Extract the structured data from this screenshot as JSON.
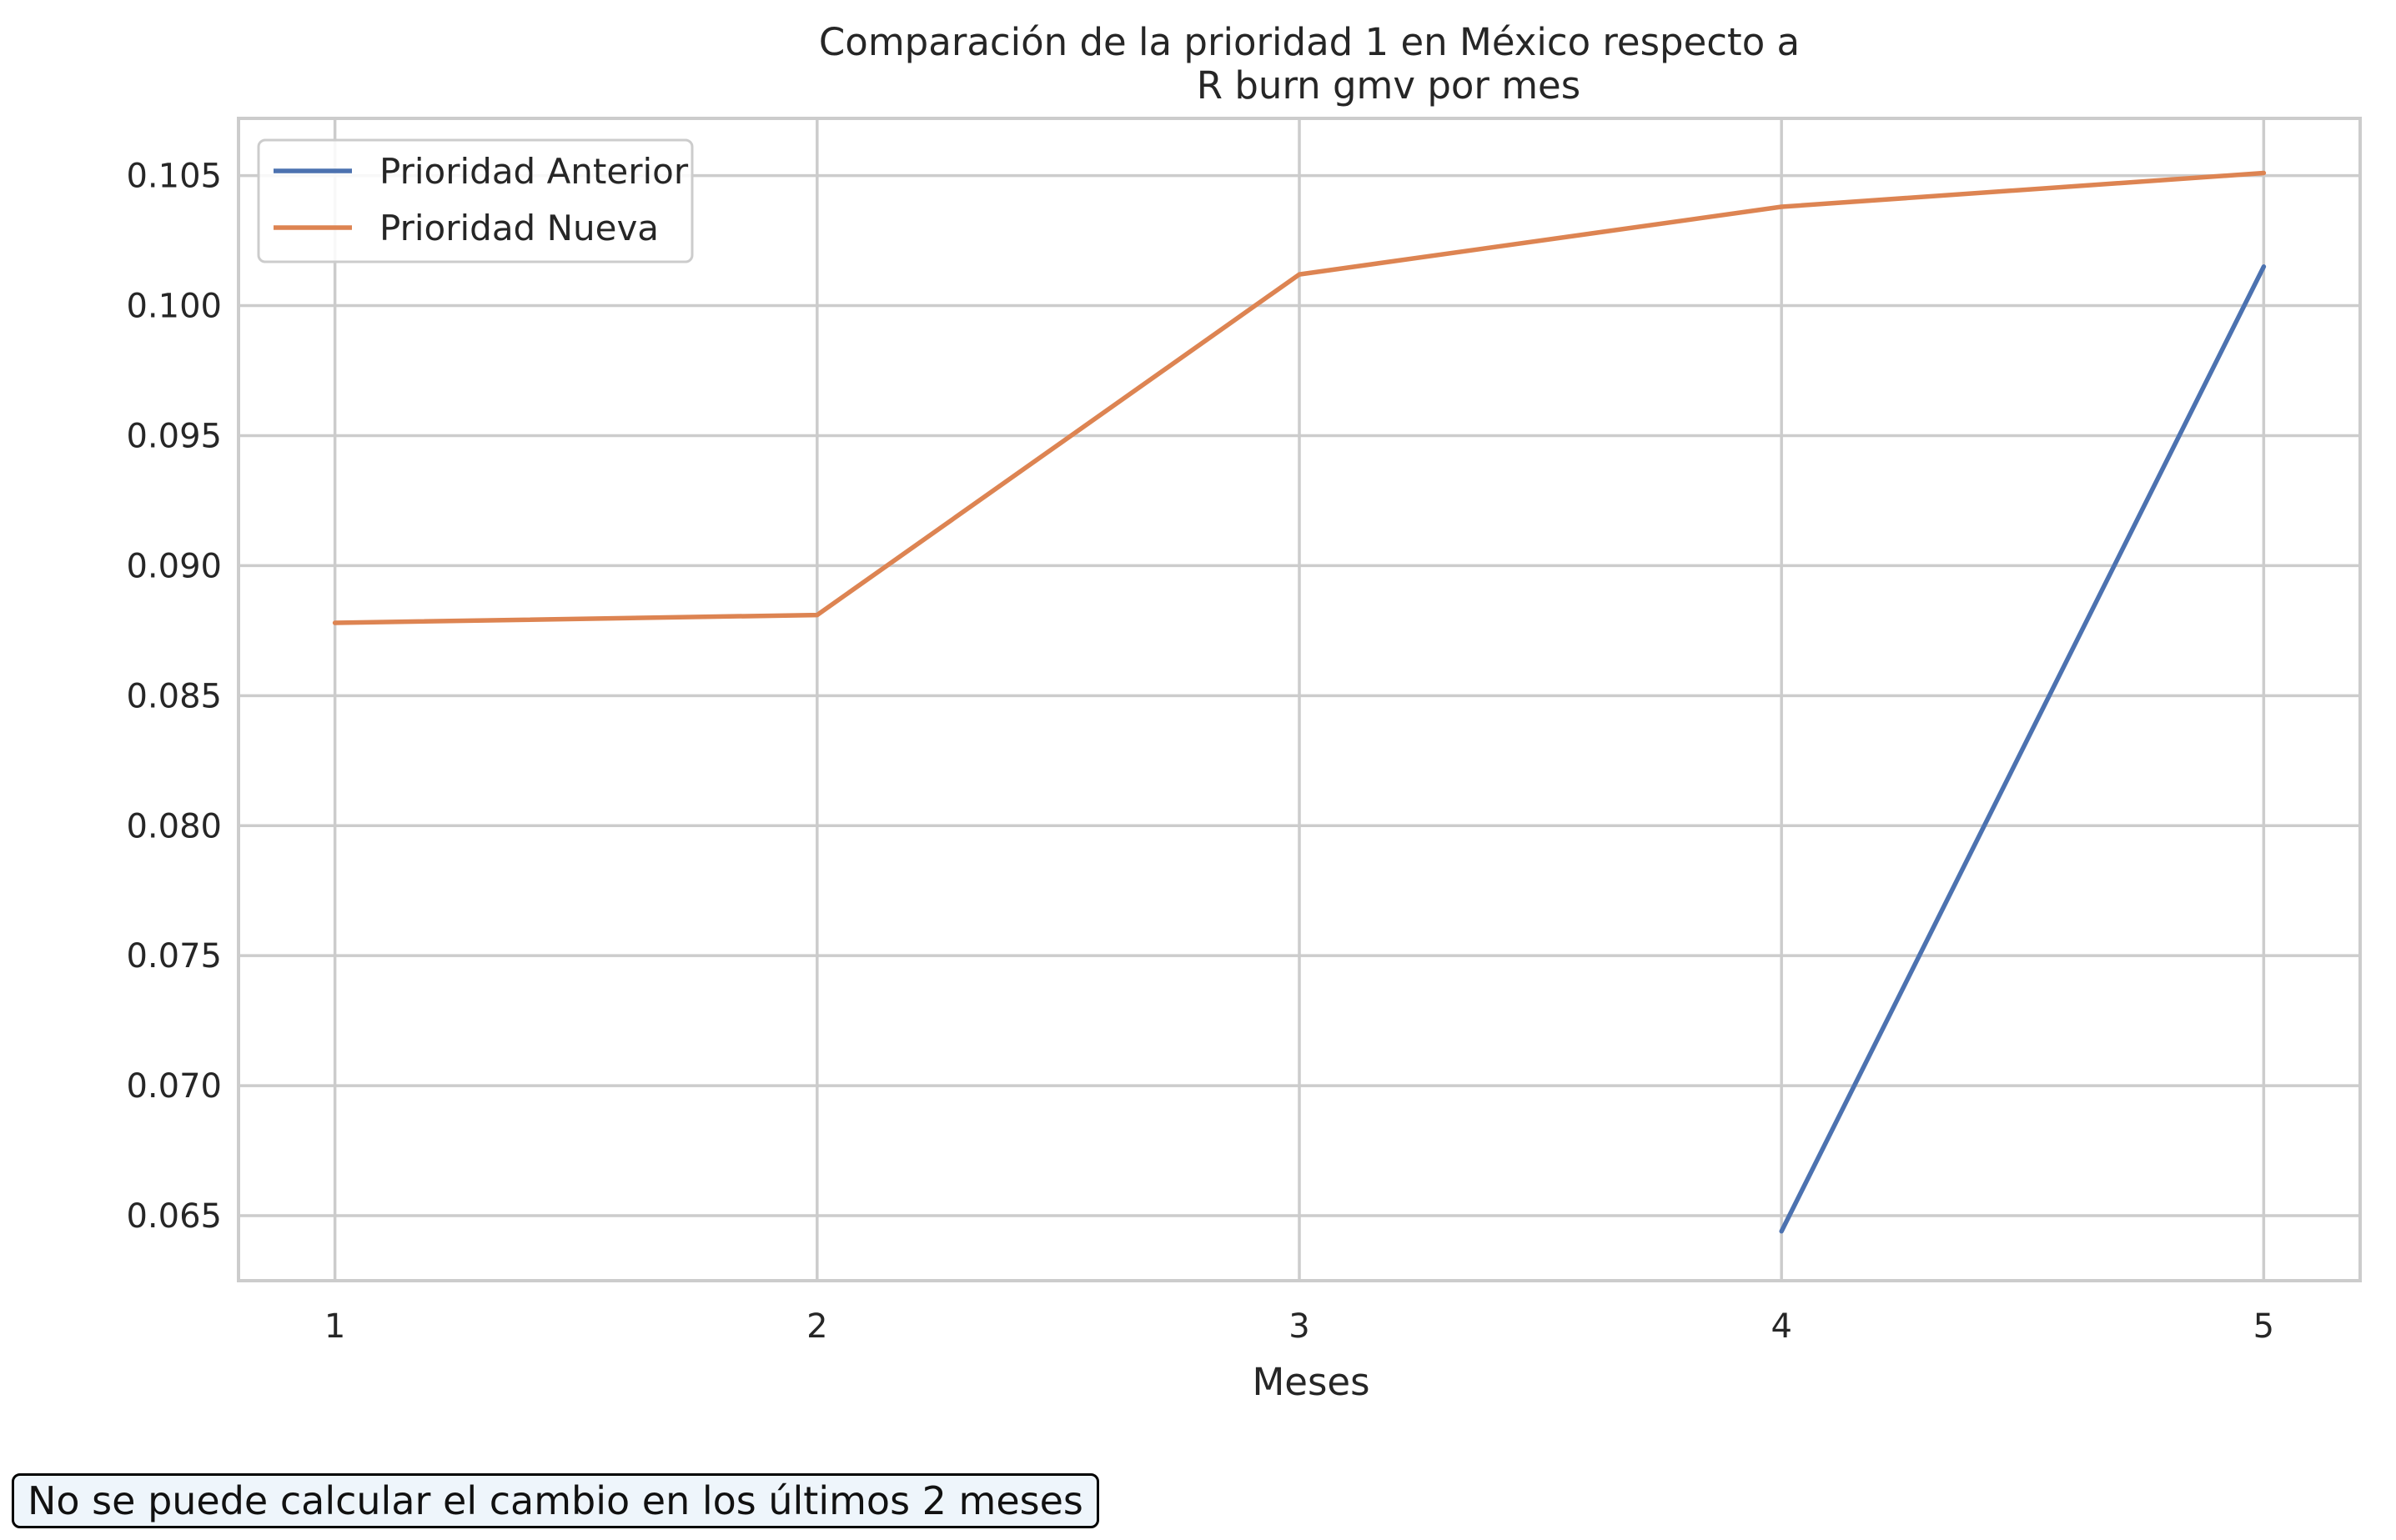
{
  "chart_data": {
    "type": "line",
    "title": [
      "Comparación de la prioridad 1 en México respecto a",
      "R burn gmv por mes"
    ],
    "xlabel": "Meses",
    "ylabel": "",
    "x": [
      1,
      2,
      3,
      4,
      5
    ],
    "xlim": [
      0.8,
      5.2
    ],
    "ylim": [
      0.0625,
      0.1072
    ],
    "xticks": [
      1,
      2,
      3,
      4,
      5
    ],
    "yticks": [
      0.065,
      0.07,
      0.075,
      0.08,
      0.085,
      0.09,
      0.095,
      0.1,
      0.105
    ],
    "ytick_labels": [
      "0.065",
      "0.070",
      "0.075",
      "0.080",
      "0.085",
      "0.090",
      "0.095",
      "0.100",
      "0.105"
    ],
    "grid": true,
    "legend": "top-left",
    "series": [
      {
        "name": "Prioridad Anterior",
        "color": "#4c72b0",
        "values": [
          null,
          null,
          null,
          0.0644,
          0.1015
        ]
      },
      {
        "name": "Prioridad Nueva",
        "color": "#dd8452",
        "values": [
          0.0878,
          0.0881,
          0.1012,
          0.1038,
          0.1051
        ]
      }
    ]
  },
  "note": "No se puede calcular el cambio en los últimos 2 meses"
}
